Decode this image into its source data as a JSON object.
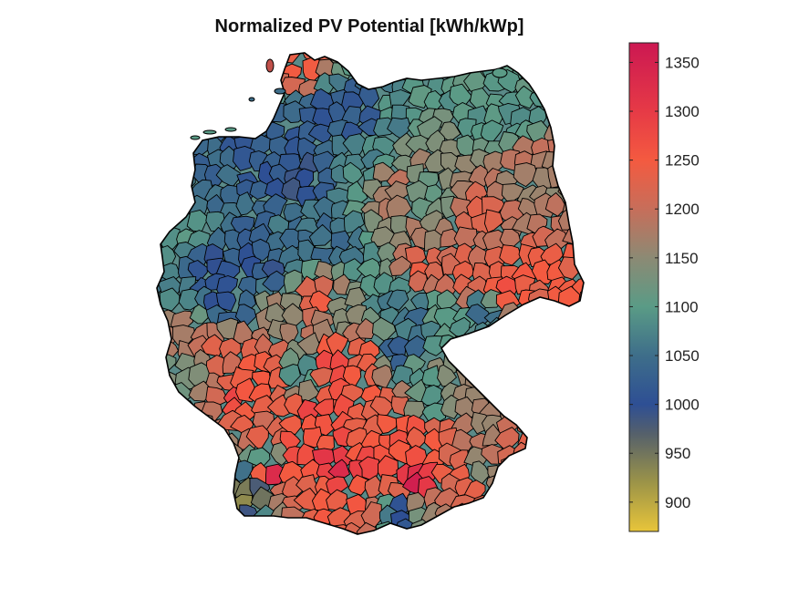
{
  "figure": {
    "title": "Normalized PV Potential [kWh/kWp]"
  },
  "map": {
    "region": "Germany",
    "subdivision": "districts",
    "border_color": "#000000",
    "background": "#ffffff"
  },
  "colorbar": {
    "orientation": "vertical",
    "placement": "right",
    "min": 870,
    "max": 1370,
    "ticks": [
      900,
      950,
      1000,
      1050,
      1100,
      1150,
      1200,
      1250,
      1300,
      1350
    ],
    "tick_labels": [
      "900",
      "950",
      "1000",
      "1050",
      "1100",
      "1150",
      "1200",
      "1250",
      "1300",
      "1350"
    ],
    "color_stops": [
      {
        "value": 870,
        "color": "#e8c53a"
      },
      {
        "value": 920,
        "color": "#9c9448"
      },
      {
        "value": 970,
        "color": "#55606b"
      },
      {
        "value": 1000,
        "color": "#2e4f94"
      },
      {
        "value": 1050,
        "color": "#3e6e8a"
      },
      {
        "value": 1100,
        "color": "#5a9b86"
      },
      {
        "value": 1150,
        "color": "#8c8a74"
      },
      {
        "value": 1200,
        "color": "#c76e5a"
      },
      {
        "value": 1250,
        "color": "#f45a40"
      },
      {
        "value": 1300,
        "color": "#e63a46"
      },
      {
        "value": 1370,
        "color": "#cc1852"
      }
    ]
  }
}
